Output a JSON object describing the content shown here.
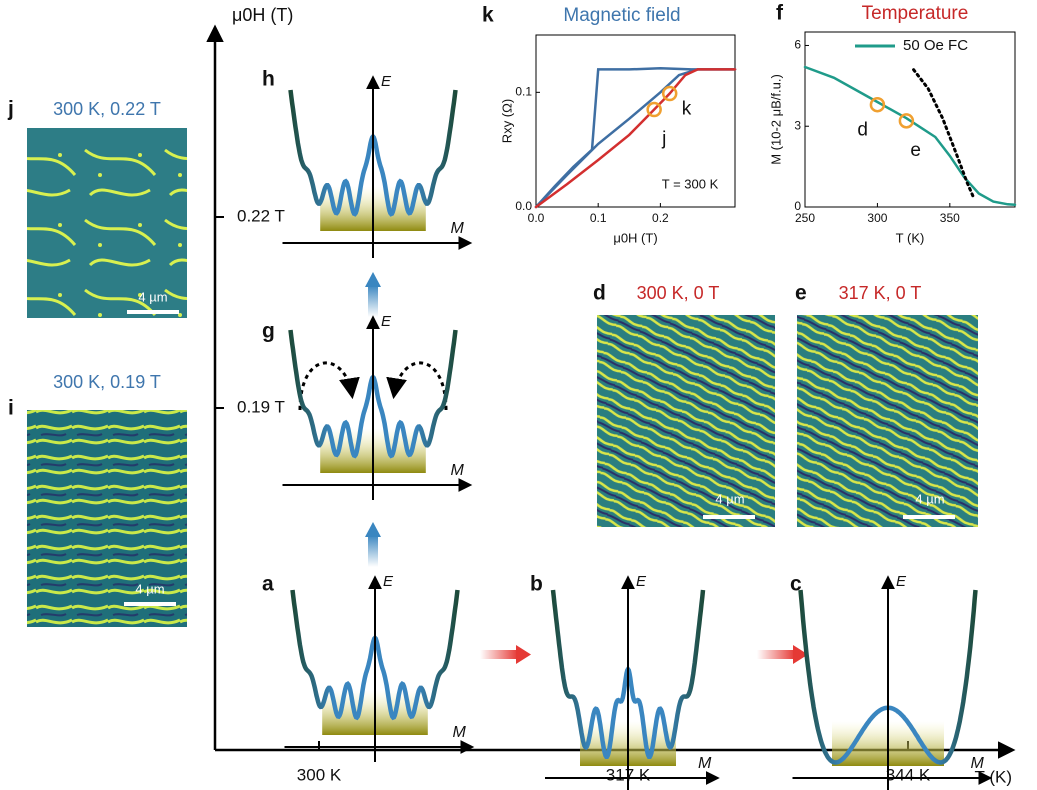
{
  "main_axes": {
    "y_label": "μ0H (T)",
    "x_label": "T (K)",
    "y_ticks": [
      "0.22 T",
      "0.19 T"
    ],
    "x_ticks": [
      "300 K",
      "317 K",
      "344 K"
    ]
  },
  "images": {
    "j": {
      "letter": "j",
      "title": "300 K, 0.22 T",
      "scale": "4 µm"
    },
    "i": {
      "letter": "i",
      "title": "300 K, 0.19 T",
      "scale": "4 µm"
    },
    "d": {
      "letter": "d",
      "title": "300 K, 0 T",
      "scale": "4 µm"
    },
    "e": {
      "letter": "e",
      "title": "317 K, 0 T",
      "scale": "4 µm"
    }
  },
  "landscapes": {
    "h": {
      "letter": "h",
      "y_axis": "E",
      "x_axis": "M"
    },
    "g": {
      "letter": "g",
      "y_axis": "E",
      "x_axis": "M"
    },
    "a": {
      "letter": "a",
      "y_axis": "E",
      "x_axis": "M"
    },
    "b": {
      "letter": "b",
      "y_axis": "E",
      "x_axis": "M"
    },
    "c": {
      "letter": "c",
      "y_axis": "E",
      "x_axis": "M"
    }
  },
  "chart_data": [
    {
      "type": "line",
      "letter": "k",
      "title": "Magnetic field",
      "x_label": "μ0H (T)",
      "y_label": "Rxy (Ω)",
      "annotation": "T = 300 K",
      "xlim": [
        0,
        0.32
      ],
      "xticks": [
        {
          "value": 0,
          "label": "0.0"
        },
        {
          "value": 0.1,
          "label": "0.1"
        },
        {
          "value": 0.2,
          "label": "0.2"
        }
      ],
      "ylim": [
        0,
        0.15
      ],
      "yticks": [
        {
          "value": 0,
          "label": "0.0"
        },
        {
          "value": 0.1,
          "label": "0.1"
        }
      ],
      "series": [
        {
          "color": "#3f6fa3",
          "x": [
            0,
            0.03,
            0.06,
            0.09,
            0.1,
            0.15,
            0.2,
            0.25,
            0.32
          ],
          "values": [
            0,
            0.018,
            0.035,
            0.05,
            0.12,
            0.12,
            0.121,
            0.12,
            0.12
          ]
        },
        {
          "color": "#3f6fa3",
          "x": [
            0,
            0.05,
            0.1,
            0.15,
            0.2,
            0.23,
            0.26,
            0.32
          ],
          "values": [
            0,
            0.028,
            0.055,
            0.077,
            0.1,
            0.115,
            0.12,
            0.12
          ]
        },
        {
          "color": "#d32f2f",
          "x": [
            0,
            0.05,
            0.1,
            0.15,
            0.19,
            0.215,
            0.24,
            0.26,
            0.32
          ],
          "values": [
            0,
            0.02,
            0.041,
            0.063,
            0.085,
            0.099,
            0.115,
            0.12,
            0.12
          ]
        }
      ],
      "markers": [
        {
          "label": "j",
          "x": 0.19,
          "y": 0.085
        },
        {
          "label": "k",
          "x": 0.215,
          "y": 0.099
        }
      ]
    },
    {
      "type": "line",
      "letter": "f",
      "title": "Temperature",
      "x_label": "T (K)",
      "y_label": "M (10-2 μB/f.u.)",
      "xlim": [
        250,
        395
      ],
      "xticks": [
        250,
        300,
        350
      ],
      "ylim": [
        0,
        6.5
      ],
      "yticks": [
        0,
        3,
        6
      ],
      "series": [
        {
          "name": "50 Oe FC",
          "color": "#1f9b8a",
          "x": [
            250,
            270,
            290,
            300,
            320,
            340,
            350,
            360,
            370,
            380,
            390,
            395
          ],
          "values": [
            5.2,
            4.8,
            4.2,
            3.9,
            3.3,
            2.6,
            1.9,
            1.1,
            0.5,
            0.2,
            0.1,
            0.08
          ]
        },
        {
          "color": "#000000",
          "dash": true,
          "x": [
            325,
            335,
            345,
            355,
            362,
            366
          ],
          "values": [
            5.1,
            4.4,
            3.3,
            1.9,
            0.9,
            0.4
          ]
        }
      ],
      "markers": [
        {
          "label": "d",
          "x": 300,
          "y": 3.8
        },
        {
          "label": "e",
          "x": 320,
          "y": 3.2
        }
      ]
    }
  ]
}
